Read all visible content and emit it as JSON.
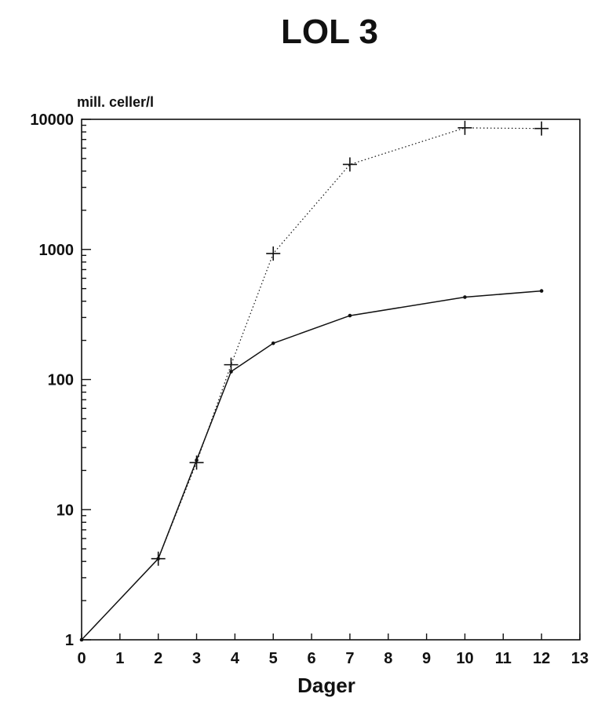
{
  "chart_data": {
    "type": "line",
    "title": "LOL 3",
    "xlabel": "Dager",
    "ylabel": "mill. celler/l",
    "y_scale": "log",
    "xlim": [
      0,
      13
    ],
    "ylim": [
      1,
      10000
    ],
    "x_ticks": [
      "0",
      "1",
      "2",
      "3",
      "4",
      "5",
      "6",
      "7",
      "8",
      "9",
      "10",
      "11",
      "12",
      "13"
    ],
    "y_ticks": [
      "1",
      "10",
      "100",
      "1000",
      "10000"
    ],
    "grid": false,
    "series": [
      {
        "style": "solid",
        "marker": "dot",
        "color": "#111111",
        "points": [
          [
            0,
            1
          ],
          [
            2,
            4.2
          ],
          [
            3,
            24
          ],
          [
            3.9,
            115
          ],
          [
            5,
            190
          ],
          [
            7,
            310
          ],
          [
            10,
            430
          ],
          [
            12,
            480
          ]
        ]
      },
      {
        "style": "dotted",
        "marker": "plus",
        "color": "#111111",
        "points": [
          [
            2,
            4.2
          ],
          [
            3,
            23
          ],
          [
            3.9,
            130
          ],
          [
            5,
            930
          ],
          [
            7,
            4500
          ],
          [
            10,
            8600
          ],
          [
            12,
            8500
          ]
        ]
      }
    ]
  }
}
